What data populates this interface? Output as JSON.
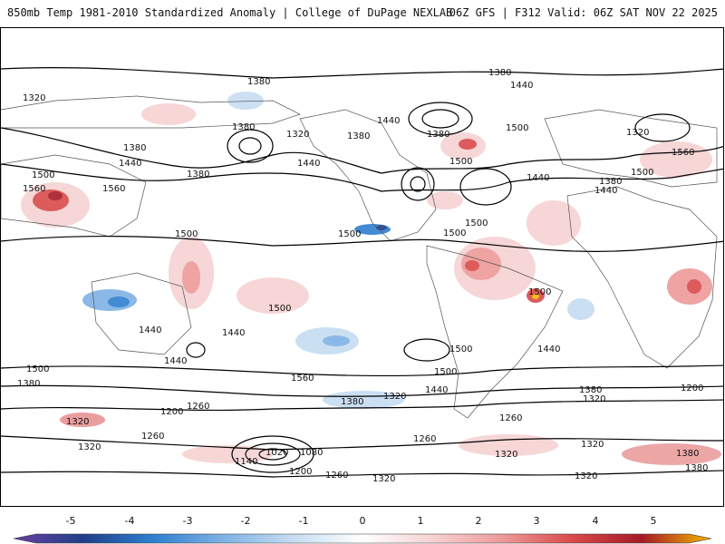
{
  "header": {
    "left": "850mb Temp 1981-2010 Standardized Anomaly | College of DuPage NEXLAB",
    "right": "06Z GFS | F312 Valid: 06Z SAT NOV 22 2025"
  },
  "map": {
    "field": "850mb temperature standardized anomaly",
    "contour_labels": [
      "1380",
      "1440",
      "1500",
      "1560",
      "1320",
      "1260",
      "1200",
      "1140",
      "1080",
      "1020"
    ],
    "colors": {
      "neg5": "#6b3fa0",
      "neg4": "#1f3f8a",
      "neg3": "#2f7fd0",
      "neg2": "#7fb2e5",
      "neg1": "#c6dcf2",
      "zero": "#ffffff",
      "pos1": "#f6d2d2",
      "pos2": "#ee9a9a",
      "pos3": "#d94a4a",
      "pos4": "#a51a26",
      "pos5": "#f5b800",
      "contour": "#000000",
      "border": "#555555"
    }
  },
  "colorbar": {
    "ticks": [
      "-5",
      "-4",
      "-3",
      "-2",
      "-1",
      "0",
      "1",
      "2",
      "3",
      "4",
      "5"
    ]
  }
}
